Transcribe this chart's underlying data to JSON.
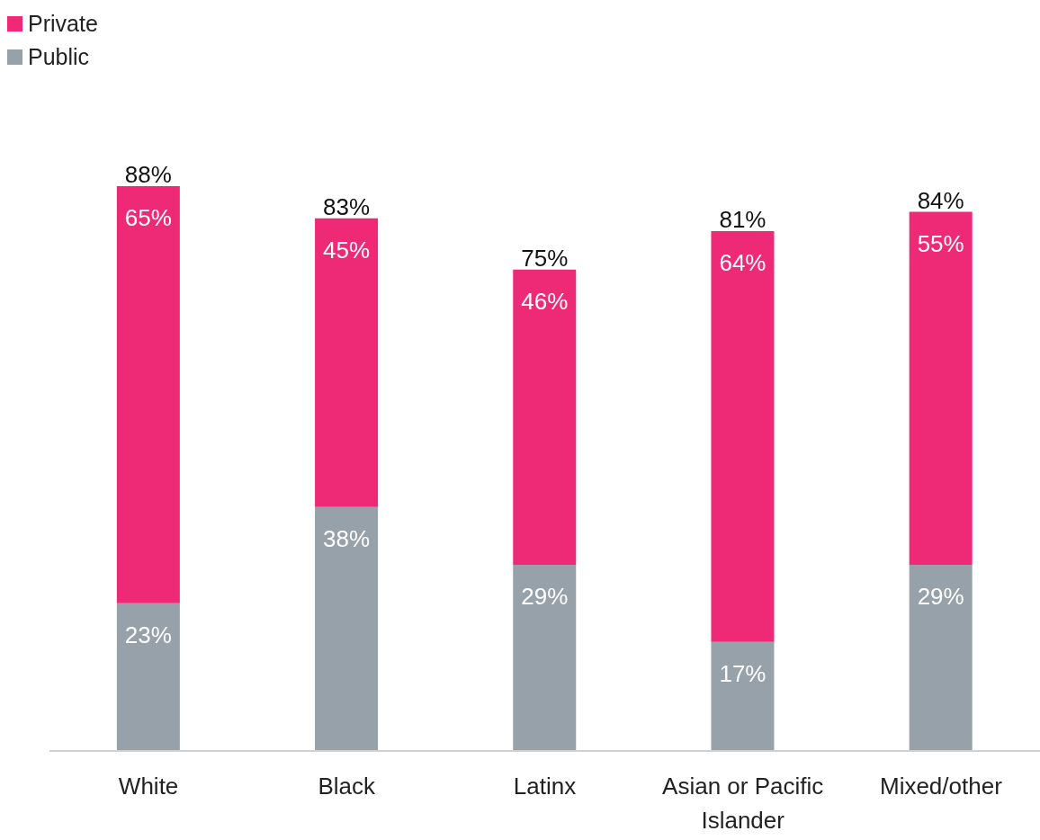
{
  "chart_data": {
    "type": "bar",
    "stacked": true,
    "legend": "top left",
    "categories": [
      "White",
      "Black",
      "Latinx",
      "Asian or Pacific Islander",
      "Mixed/other"
    ],
    "series": [
      {
        "name": "Public",
        "color": "#97a1a9",
        "values": [
          23,
          38,
          29,
          17,
          29
        ],
        "value_labels": [
          "23%",
          "38%",
          "29%",
          "17%",
          "29%"
        ]
      },
      {
        "name": "Private",
        "color": "#ee2a77",
        "values": [
          65,
          45,
          46,
          64,
          55
        ],
        "value_labels": [
          "65%",
          "45%",
          "46%",
          "64%",
          "55%"
        ]
      }
    ],
    "totals": [
      "88%",
      "83%",
      "75%",
      "81%",
      "84%"
    ]
  }
}
